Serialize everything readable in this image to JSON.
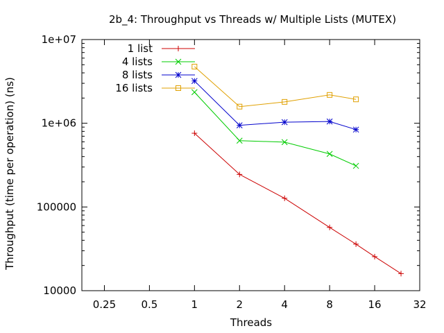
{
  "chart_data": {
    "type": "line",
    "title": "2b_4: Throughput vs Threads w/ Multiple Lists (MUTEX)",
    "xlabel": "Threads",
    "ylabel": "Throughput (time per operation) (ns)",
    "xscale": "log2",
    "yscale": "log10",
    "xlim": [
      0.1767767,
      32
    ],
    "ylim": [
      10000,
      10000000
    ],
    "x_ticks": [
      0.25,
      0.5,
      1,
      2,
      4,
      8,
      16,
      32
    ],
    "x_tick_labels": [
      "0.25",
      "0.5",
      "1",
      "2",
      "4",
      "8",
      "16",
      "32"
    ],
    "y_ticks": [
      10000,
      100000,
      1000000,
      10000000
    ],
    "y_tick_labels": [
      "10000",
      "100000",
      "1e+06",
      "1e+07"
    ],
    "grid": false,
    "legend_position": "top-left",
    "series": [
      {
        "name": "1 list",
        "color": "#cc0000",
        "marker": "plus",
        "x": [
          1,
          2,
          4,
          8,
          12,
          16,
          24
        ],
        "y": [
          760000,
          245000,
          127000,
          57000,
          36000,
          25500,
          16000
        ]
      },
      {
        "name": "4 lists",
        "color": "#00cc00",
        "marker": "cross",
        "x": [
          1,
          2,
          4,
          8,
          12
        ],
        "y": [
          2350000,
          620000,
          595000,
          430000,
          310000
        ]
      },
      {
        "name": "8 lists",
        "color": "#0000cc",
        "marker": "asterisk",
        "x": [
          1,
          2,
          4,
          8,
          12
        ],
        "y": [
          3200000,
          945000,
          1030000,
          1050000,
          840000
        ]
      },
      {
        "name": "16 lists",
        "color": "#e0a000",
        "marker": "square",
        "x": [
          1,
          2,
          4,
          8,
          12
        ],
        "y": [
          4750000,
          1580000,
          1800000,
          2180000,
          1930000
        ]
      }
    ]
  }
}
